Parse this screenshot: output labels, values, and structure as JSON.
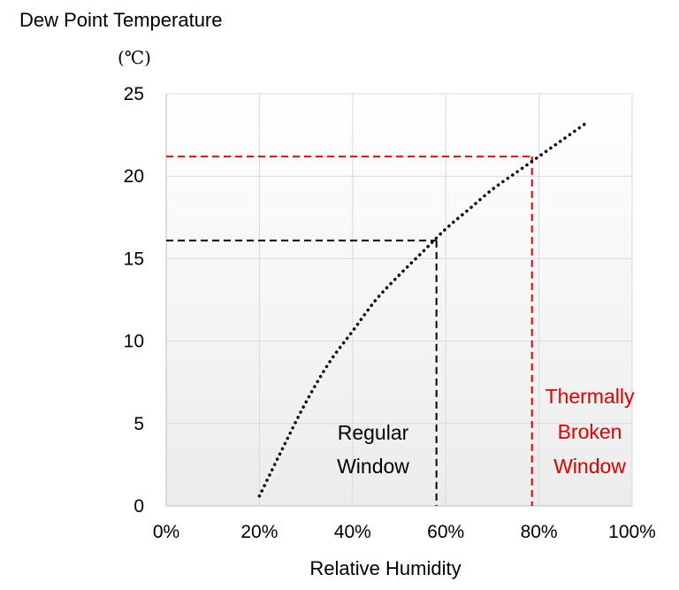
{
  "chart_data": {
    "type": "line",
    "ylabel": "Dew Point Temperature",
    "yunit": "(℃)",
    "xlabel": "Relative Humidity",
    "xlim": [
      0,
      100
    ],
    "ylim": [
      0,
      25
    ],
    "x_ticks": [
      "0%",
      "20%",
      "40%",
      "60%",
      "80%",
      "100%"
    ],
    "y_ticks": [
      "0",
      "5",
      "10",
      "15",
      "20",
      "25"
    ],
    "grid": true,
    "series": [
      {
        "x": [
          20,
          25,
          30,
          35,
          40,
          45,
          50,
          55,
          60,
          65,
          70,
          75,
          80,
          85,
          90
        ],
        "y": [
          0.6,
          3.5,
          6.3,
          8.7,
          10.6,
          12.5,
          14.0,
          15.4,
          16.8,
          18.0,
          19.2,
          20.2,
          21.2,
          22.2,
          23.2
        ]
      }
    ],
    "reference_lines": [
      {
        "x": 58,
        "y": 16.1,
        "color": "#000000"
      },
      {
        "x": 78.5,
        "y": 21.2,
        "color": "#e00000"
      }
    ],
    "annotations": [
      {
        "lines": [
          "Regular",
          "Window"
        ],
        "color": "#000000"
      },
      {
        "lines": [
          "Thermally",
          "Broken",
          "Window"
        ],
        "color": "#e00000"
      }
    ]
  }
}
